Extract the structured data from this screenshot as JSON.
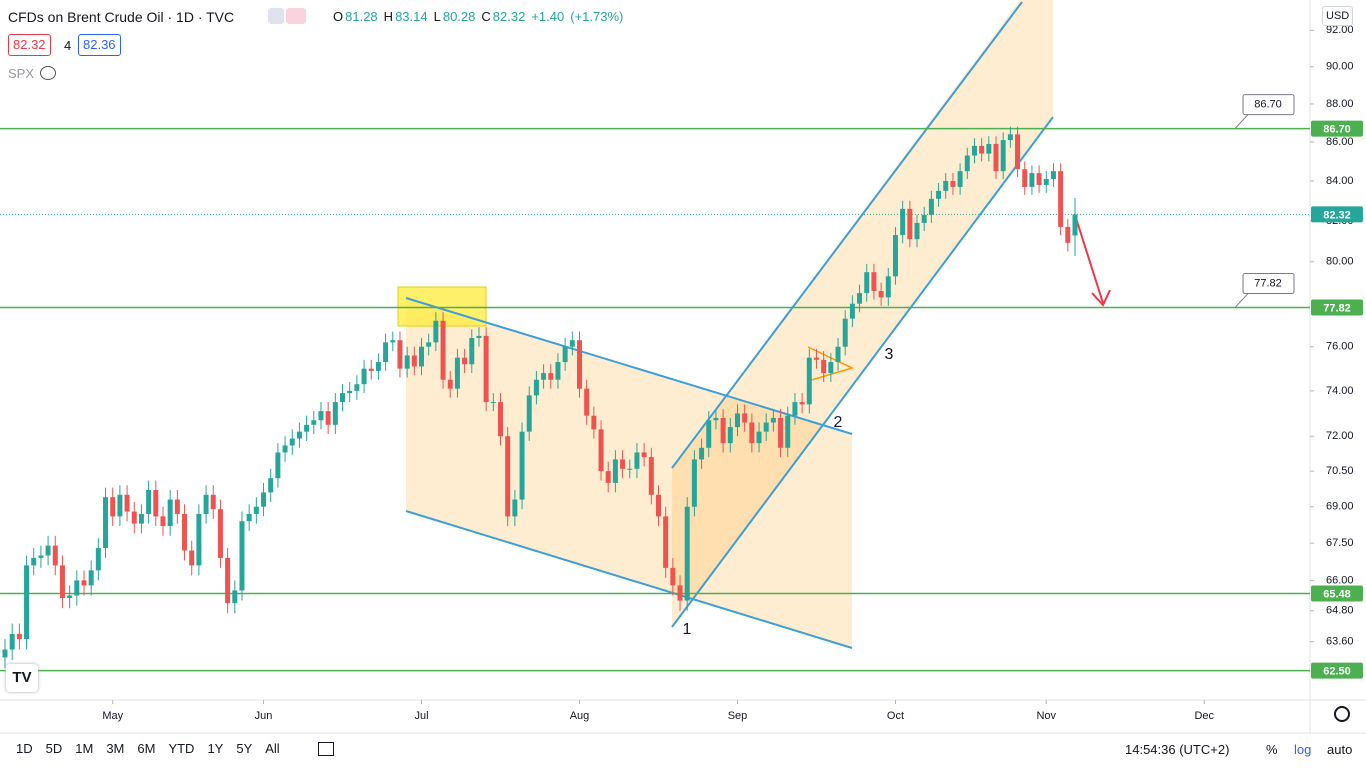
{
  "header": {
    "title": "CFDs on Brent Crude Oil · 1D · TVC",
    "bid": 82.32,
    "spread": 4,
    "ask": 82.36,
    "indicator": "SPX",
    "ohlc_keys": [
      "O",
      "H",
      "L",
      "C"
    ],
    "change": "+1.40",
    "change_pct": "(+1.73%)",
    "currency": "USD"
  },
  "chart_data": {
    "type": "candlestick",
    "log_scale": true,
    "up_color": "#26a69a",
    "down_color": "#ef5350",
    "level_color": "#4caf50",
    "ylim": [
      61.4,
      93.7
    ],
    "yticks": [
      {
        "value": 92,
        "label": "92.00"
      },
      {
        "value": 90,
        "label": "90.00"
      },
      {
        "value": 88,
        "label": "88.00"
      },
      {
        "value": 86,
        "label": "86.00"
      },
      {
        "value": 84,
        "label": "84.00"
      },
      {
        "value": 82,
        "label": "82.00"
      },
      {
        "value": 80,
        "label": "80.00"
      },
      {
        "value": 76,
        "label": "76.00"
      },
      {
        "value": 74,
        "label": "74.00"
      },
      {
        "value": 72,
        "label": "72.00"
      },
      {
        "value": 70.5,
        "label": "70.50"
      },
      {
        "value": 69,
        "label": "69.00"
      },
      {
        "value": 67.5,
        "label": "67.50"
      },
      {
        "value": 66,
        "label": "66.00"
      },
      {
        "value": 64.8,
        "label": "64.80"
      },
      {
        "value": 63.6,
        "label": "63.60"
      }
    ],
    "xticks": [
      {
        "value": 15,
        "label": "May"
      },
      {
        "value": 36,
        "label": "Jun"
      },
      {
        "value": 58,
        "label": "Jul"
      },
      {
        "value": 80,
        "label": "Aug"
      },
      {
        "value": 102,
        "label": "Sep"
      },
      {
        "value": 124,
        "label": "Oct"
      },
      {
        "value": 145,
        "label": "Nov"
      },
      {
        "value": 167,
        "label": "Dec"
      }
    ],
    "levels": [
      {
        "value": 86.7,
        "label": "86.70",
        "callout": true
      },
      {
        "value": 77.82,
        "label": "77.82",
        "callout": true
      },
      {
        "value": 65.48,
        "label": "65.48",
        "callout": false
      },
      {
        "value": 62.5,
        "label": "62.50",
        "callout": false
      }
    ],
    "annotations": [
      "1",
      "2",
      "3"
    ],
    "open": [
      63.0,
      63.3,
      63.9,
      63.7,
      66.6,
      66.9,
      67.0,
      67.4,
      66.6,
      65.3,
      65.4,
      66.0,
      65.8,
      66.4,
      67.3,
      69.4,
      68.6,
      69.5,
      68.8,
      68.3,
      68.7,
      69.7,
      68.6,
      68.2,
      69.3,
      68.7,
      67.2,
      66.6,
      68.7,
      69.5,
      68.9,
      66.9,
      65.1,
      65.6,
      68.4,
      68.7,
      69.0,
      69.6,
      70.2,
      71.3,
      71.6,
      71.9,
      72.2,
      72.5,
      72.7,
      73.1,
      72.5,
      73.5,
      73.9,
      74.0,
      74.3,
      75.0,
      74.9,
      75.3,
      76.2,
      76.3,
      75.0,
      75.6,
      75.1,
      76.0,
      76.2,
      77.2,
      74.5,
      74.1,
      75.5,
      75.2,
      76.4,
      76.5,
      73.5,
      73.5,
      72.0,
      68.6,
      69.3,
      72.2,
      73.8,
      74.5,
      74.8,
      74.5,
      75.3,
      76.0,
      76.3,
      74.1,
      72.9,
      72.3,
      70.5,
      70.0,
      71.0,
      70.6,
      70.6,
      71.3,
      71.1,
      69.5,
      68.6,
      66.5,
      65.8,
      65.2,
      69.0,
      71.0,
      71.5,
      72.7,
      72.8,
      71.7,
      72.4,
      73.0,
      72.6,
      71.7,
      72.2,
      72.6,
      72.8,
      71.5,
      72.9,
      73.5,
      73.4,
      75.5,
      75.4,
      74.8,
      75.3,
      76.0,
      77.3,
      78.0,
      78.5,
      79.5,
      78.6,
      78.3,
      79.3,
      81.3,
      82.6,
      81.1,
      81.9,
      82.3,
      83.1,
      83.5,
      84.0,
      83.7,
      84.5,
      85.3,
      85.8,
      85.4,
      85.9,
      84.5,
      86.1,
      86.4,
      84.6,
      83.7,
      84.4,
      83.8,
      84.1,
      84.5,
      81.7,
      81.28
    ],
    "high": [
      63.7,
      64.3,
      64.3,
      67.0,
      67.3,
      67.4,
      67.8,
      67.8,
      67.0,
      65.8,
      66.4,
      66.4,
      66.8,
      67.7,
      69.8,
      69.8,
      69.9,
      69.9,
      69.2,
      69.1,
      70.1,
      70.1,
      69.0,
      69.7,
      69.7,
      69.1,
      67.6,
      69.1,
      69.9,
      69.9,
      69.3,
      67.3,
      66.0,
      68.8,
      69.1,
      69.4,
      70.0,
      70.6,
      71.7,
      72.0,
      72.3,
      72.6,
      72.9,
      73.1,
      73.5,
      73.5,
      73.9,
      74.3,
      74.4,
      74.7,
      75.4,
      75.4,
      75.7,
      76.6,
      76.7,
      76.7,
      76.0,
      76.0,
      76.4,
      76.6,
      77.6,
      77.6,
      74.9,
      75.9,
      75.9,
      76.8,
      76.9,
      76.9,
      73.9,
      73.9,
      72.4,
      69.7,
      72.6,
      74.2,
      74.9,
      75.2,
      75.2,
      75.7,
      76.4,
      76.7,
      76.7,
      74.5,
      73.3,
      72.7,
      70.9,
      71.4,
      71.4,
      71.0,
      71.7,
      71.7,
      71.5,
      69.9,
      69.0,
      66.9,
      66.2,
      69.4,
      71.4,
      71.9,
      73.1,
      73.2,
      73.2,
      72.8,
      73.4,
      73.4,
      73.0,
      72.6,
      73.0,
      73.2,
      73.2,
      73.3,
      73.9,
      73.9,
      75.9,
      75.9,
      75.8,
      75.7,
      76.4,
      77.7,
      78.4,
      78.9,
      79.9,
      79.9,
      79.0,
      79.7,
      81.7,
      83.0,
      83.0,
      82.3,
      82.7,
      83.5,
      83.9,
      84.4,
      84.4,
      84.9,
      85.7,
      86.2,
      86.2,
      86.3,
      86.3,
      86.5,
      86.8,
      86.8,
      85.0,
      84.8,
      84.8,
      84.5,
      84.9,
      84.9,
      82.1,
      83.14
    ],
    "low": [
      62.6,
      62.9,
      63.3,
      63.3,
      66.2,
      66.5,
      66.6,
      66.2,
      64.9,
      64.9,
      65.0,
      65.4,
      65.4,
      66.0,
      66.9,
      68.2,
      68.2,
      68.4,
      67.9,
      67.9,
      68.3,
      68.2,
      67.8,
      67.8,
      68.3,
      66.8,
      66.2,
      66.2,
      68.3,
      68.5,
      66.5,
      64.7,
      64.7,
      65.2,
      68.0,
      68.3,
      68.6,
      69.2,
      69.8,
      70.9,
      71.2,
      71.5,
      71.8,
      72.1,
      72.3,
      72.1,
      72.1,
      73.1,
      73.5,
      73.6,
      73.9,
      74.5,
      74.5,
      74.9,
      75.8,
      74.6,
      74.6,
      74.7,
      74.7,
      75.6,
      75.8,
      74.1,
      73.7,
      73.7,
      74.8,
      74.8,
      76.0,
      73.1,
      73.1,
      71.6,
      68.2,
      68.2,
      68.9,
      71.8,
      73.4,
      74.1,
      74.1,
      74.1,
      74.9,
      75.6,
      73.7,
      72.5,
      71.9,
      70.1,
      69.6,
      69.6,
      70.2,
      70.2,
      70.2,
      70.7,
      69.1,
      68.2,
      66.1,
      65.4,
      64.8,
      64.8,
      68.6,
      70.6,
      71.1,
      72.3,
      71.3,
      71.3,
      72.0,
      72.2,
      71.3,
      71.3,
      71.8,
      72.2,
      71.1,
      71.1,
      72.5,
      73.0,
      73.0,
      75.0,
      74.4,
      74.4,
      74.9,
      75.6,
      76.9,
      77.6,
      78.1,
      78.2,
      77.9,
      77.9,
      78.9,
      80.9,
      80.7,
      80.7,
      81.5,
      81.9,
      82.7,
      83.1,
      83.3,
      83.3,
      84.1,
      84.9,
      85.0,
      85.0,
      84.1,
      84.1,
      85.7,
      84.2,
      83.3,
      83.3,
      83.4,
      83.4,
      83.7,
      81.3,
      80.5,
      80.28
    ],
    "close": [
      63.3,
      63.9,
      63.7,
      66.6,
      66.9,
      67.0,
      67.4,
      66.6,
      65.3,
      65.4,
      66.0,
      65.8,
      66.4,
      67.3,
      69.4,
      68.6,
      69.5,
      68.8,
      68.3,
      68.7,
      69.7,
      68.6,
      68.2,
      69.3,
      68.7,
      67.2,
      66.6,
      68.7,
      69.5,
      68.9,
      66.9,
      65.1,
      65.6,
      68.4,
      68.7,
      69.0,
      69.6,
      70.2,
      71.3,
      71.6,
      71.9,
      72.2,
      72.5,
      72.7,
      73.1,
      72.5,
      73.5,
      73.9,
      74.0,
      74.3,
      75.0,
      74.9,
      75.3,
      76.2,
      76.3,
      75.0,
      75.6,
      75.1,
      76.0,
      76.2,
      77.2,
      74.5,
      74.1,
      75.5,
      75.2,
      76.4,
      76.5,
      73.5,
      73.5,
      72.0,
      68.6,
      69.3,
      72.2,
      73.8,
      74.5,
      74.8,
      74.5,
      75.3,
      76.0,
      76.3,
      74.1,
      72.9,
      72.3,
      70.5,
      70.0,
      71.0,
      70.6,
      70.6,
      71.3,
      71.1,
      69.5,
      68.6,
      66.5,
      65.8,
      65.2,
      69.0,
      71.0,
      71.5,
      72.7,
      72.8,
      71.7,
      72.4,
      73.0,
      72.6,
      71.7,
      72.2,
      72.6,
      72.8,
      71.5,
      72.9,
      73.5,
      73.4,
      75.5,
      75.4,
      74.8,
      75.3,
      76.0,
      77.3,
      78.0,
      78.5,
      79.5,
      78.6,
      78.3,
      79.3,
      81.3,
      82.6,
      81.1,
      81.9,
      82.3,
      83.1,
      83.5,
      84.0,
      83.7,
      84.5,
      85.3,
      85.8,
      85.4,
      85.9,
      84.5,
      86.1,
      86.4,
      84.6,
      83.7,
      84.4,
      83.8,
      84.1,
      84.5,
      81.7,
      80.92,
      82.32
    ]
  },
  "toolbar": {
    "ranges": [
      "1D",
      "5D",
      "1M",
      "3M",
      "6M",
      "YTD",
      "1Y",
      "5Y",
      "All"
    ],
    "clock": "14:54:36 (UTC+2)",
    "percent": "%",
    "log": "log",
    "auto": "auto"
  }
}
